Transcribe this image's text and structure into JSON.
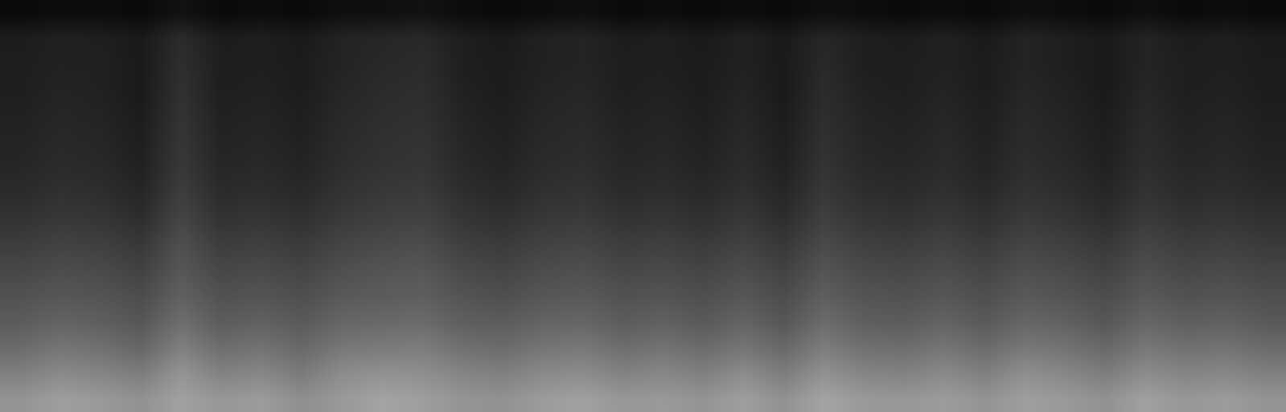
{
  "chart_data": {
    "type": "heatmap",
    "tick_labels": false,
    "grid": false,
    "zlim": [
      0,
      100
    ],
    "z": [
      [
        58,
        62,
        60,
        57,
        63,
        59,
        61,
        56,
        60,
        64,
        62,
        58,
        57,
        61,
        63,
        59,
        60,
        58,
        62,
        57,
        64,
        60,
        59,
        61,
        58,
        62,
        60,
        57,
        63,
        59,
        61,
        58
      ],
      [
        50,
        54,
        52,
        49,
        58,
        51,
        53,
        48,
        55,
        57,
        56,
        52,
        50,
        54,
        55,
        51,
        53,
        50,
        55,
        49,
        57,
        52,
        51,
        54,
        50,
        56,
        53,
        49,
        55,
        52,
        53,
        50
      ],
      [
        42,
        46,
        44,
        40,
        50,
        43,
        45,
        41,
        47,
        48,
        49,
        44,
        42,
        46,
        47,
        43,
        45,
        42,
        46,
        41,
        49,
        44,
        43,
        46,
        42,
        47,
        45,
        41,
        47,
        44,
        45,
        42
      ],
      [
        36,
        39,
        37,
        34,
        43,
        36,
        38,
        35,
        40,
        41,
        42,
        37,
        36,
        39,
        40,
        36,
        38,
        35,
        39,
        34,
        42,
        37,
        36,
        39,
        35,
        40,
        38,
        34,
        40,
        37,
        38,
        35
      ],
      [
        32,
        34,
        33,
        30,
        38,
        32,
        33,
        31,
        35,
        36,
        37,
        33,
        31,
        34,
        35,
        32,
        33,
        31,
        34,
        30,
        37,
        33,
        32,
        34,
        31,
        35,
        33,
        30,
        35,
        32,
        33,
        31
      ],
      [
        28,
        30,
        29,
        26,
        34,
        28,
        29,
        27,
        31,
        33,
        34,
        29,
        27,
        30,
        31,
        28,
        29,
        27,
        30,
        26,
        33,
        29,
        28,
        30,
        27,
        31,
        29,
        26,
        31,
        28,
        29,
        27
      ],
      [
        24,
        26,
        25,
        22,
        31,
        24,
        25,
        23,
        27,
        29,
        30,
        25,
        23,
        26,
        27,
        24,
        25,
        23,
        26,
        22,
        29,
        25,
        24,
        26,
        23,
        27,
        25,
        22,
        27,
        24,
        25,
        23
      ],
      [
        20,
        22,
        21,
        18,
        27,
        20,
        21,
        19,
        23,
        25,
        26,
        21,
        19,
        22,
        23,
        20,
        21,
        19,
        22,
        18,
        25,
        21,
        20,
        22,
        19,
        23,
        21,
        18,
        23,
        20,
        21,
        19
      ],
      [
        17,
        19,
        18,
        15,
        24,
        17,
        18,
        16,
        20,
        22,
        23,
        18,
        16,
        19,
        20,
        17,
        18,
        16,
        19,
        15,
        22,
        18,
        17,
        19,
        16,
        20,
        18,
        15,
        20,
        17,
        18,
        16
      ],
      [
        15,
        17,
        16,
        13,
        22,
        15,
        16,
        14,
        18,
        20,
        21,
        16,
        14,
        17,
        18,
        15,
        16,
        14,
        17,
        13,
        20,
        16,
        15,
        17,
        14,
        18,
        16,
        13,
        18,
        15,
        16,
        14
      ],
      [
        14,
        16,
        15,
        12,
        21,
        14,
        15,
        13,
        17,
        19,
        20,
        15,
        13,
        16,
        17,
        14,
        15,
        13,
        16,
        12,
        19,
        15,
        14,
        16,
        13,
        17,
        15,
        12,
        17,
        14,
        15,
        13
      ],
      [
        13,
        15,
        14,
        11,
        20,
        13,
        14,
        12,
        16,
        18,
        19,
        14,
        12,
        15,
        16,
        13,
        14,
        12,
        15,
        11,
        18,
        14,
        13,
        15,
        12,
        16,
        14,
        11,
        16,
        13,
        14,
        12
      ],
      [
        12,
        14,
        13,
        10,
        19,
        12,
        13,
        11,
        15,
        17,
        18,
        13,
        11,
        14,
        15,
        12,
        13,
        11,
        14,
        10,
        17,
        13,
        12,
        14,
        11,
        15,
        13,
        10,
        15,
        12,
        13,
        11
      ],
      [
        12,
        13,
        13,
        10,
        18,
        12,
        12,
        11,
        14,
        16,
        17,
        12,
        11,
        13,
        14,
        12,
        12,
        11,
        13,
        10,
        16,
        12,
        12,
        13,
        11,
        14,
        12,
        10,
        14,
        12,
        12,
        11
      ],
      [
        11,
        13,
        12,
        10,
        17,
        11,
        12,
        10,
        14,
        15,
        16,
        12,
        10,
        13,
        14,
        11,
        12,
        10,
        13,
        10,
        15,
        12,
        11,
        13,
        10,
        14,
        12,
        10,
        14,
        11,
        12,
        10
      ],
      [
        4,
        5,
        5,
        4,
        7,
        4,
        5,
        4,
        6,
        6,
        7,
        5,
        4,
        5,
        6,
        4,
        5,
        4,
        5,
        4,
        6,
        5,
        4,
        5,
        4,
        6,
        5,
        4,
        6,
        4,
        5,
        4
      ]
    ]
  }
}
